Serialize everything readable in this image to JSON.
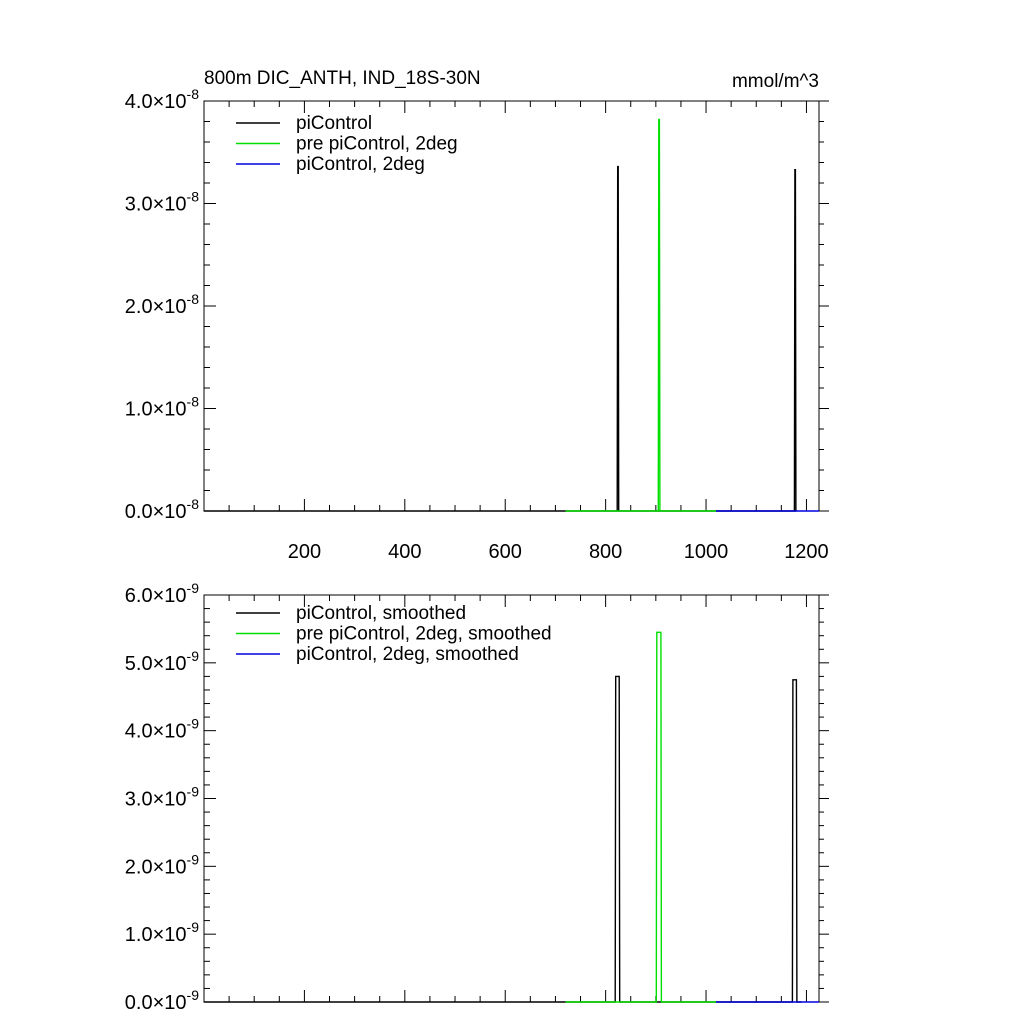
{
  "header": {
    "title": "800m DIC_ANTH, IND_18S-30N",
    "units": "mmol/m^3"
  },
  "chart_data": [
    {
      "type": "line",
      "panel": "top",
      "xlim": [
        0,
        1225
      ],
      "ylim": [
        0,
        4e-08
      ],
      "x_tick_values": [
        200,
        400,
        600,
        800,
        1000,
        1200
      ],
      "x_tick_labels": [
        "200",
        "400",
        "600",
        "800",
        "1000",
        "1200"
      ],
      "x_tick_labels_shown": true,
      "y_tick_values": [
        0,
        1e-08,
        2e-08,
        3e-08,
        4e-08
      ],
      "y_tick_mantissas": [
        "0.0",
        "1.0",
        "2.0",
        "3.0",
        "4.0"
      ],
      "y_tick_exponent": "-8",
      "legend_position": "top-left",
      "series": [
        {
          "name": "piControl",
          "color": "#000000",
          "x": [
            0,
            823,
            824,
            825,
            826,
            1176,
            1177,
            1178,
            1179,
            1180
          ],
          "y": [
            0,
            0,
            3.36e-08,
            3.36e-08,
            0,
            0,
            3.33e-08,
            3.33e-08,
            0,
            0
          ],
          "x_range": [
            0,
            1180
          ]
        },
        {
          "name": "pre piControl, 2deg",
          "color": "#00e000",
          "x": [
            720,
            905,
            906,
            907,
            908,
            1020
          ],
          "y": [
            0,
            0,
            3.82e-08,
            3.82e-08,
            0,
            0
          ],
          "x_range": [
            720,
            1020
          ]
        },
        {
          "name": "piControl, 2deg",
          "color": "#0000e0",
          "x": [
            1020,
            1225
          ],
          "y": [
            0,
            0
          ],
          "x_range": [
            1020,
            1225
          ]
        }
      ]
    },
    {
      "type": "line",
      "panel": "bottom",
      "xlim": [
        0,
        1225
      ],
      "ylim": [
        0,
        6e-09
      ],
      "x_tick_values": [
        200,
        400,
        600,
        800,
        1000,
        1200
      ],
      "x_tick_labels_shown": false,
      "y_tick_values": [
        0,
        1e-09,
        2e-09,
        3e-09,
        4e-09,
        5e-09,
        6e-09
      ],
      "y_tick_mantissas": [
        "0.0",
        "1.0",
        "2.0",
        "3.0",
        "4.0",
        "5.0",
        "6.0"
      ],
      "y_tick_exponent": "-9",
      "legend_position": "top-left",
      "series": [
        {
          "name": "piControl, smoothed",
          "color": "#000000",
          "x": [
            0,
            819,
            820,
            827,
            828,
            1172,
            1173,
            1180,
            1181,
            1190
          ],
          "y": [
            0,
            0,
            4.8e-09,
            4.8e-09,
            0,
            0,
            4.75e-09,
            4.75e-09,
            0,
            0
          ],
          "x_range": [
            0,
            1190
          ]
        },
        {
          "name": "pre piControl, 2deg, smoothed",
          "color": "#00e000",
          "x": [
            720,
            901,
            902,
            910,
            911,
            1020
          ],
          "y": [
            0,
            0,
            5.45e-09,
            5.45e-09,
            0,
            0
          ],
          "x_range": [
            720,
            1020
          ]
        },
        {
          "name": "piControl, 2deg, smoothed",
          "color": "#0000e0",
          "x": [
            1020,
            1225
          ],
          "y": [
            0,
            0
          ],
          "x_range": [
            1020,
            1225
          ]
        }
      ]
    }
  ]
}
